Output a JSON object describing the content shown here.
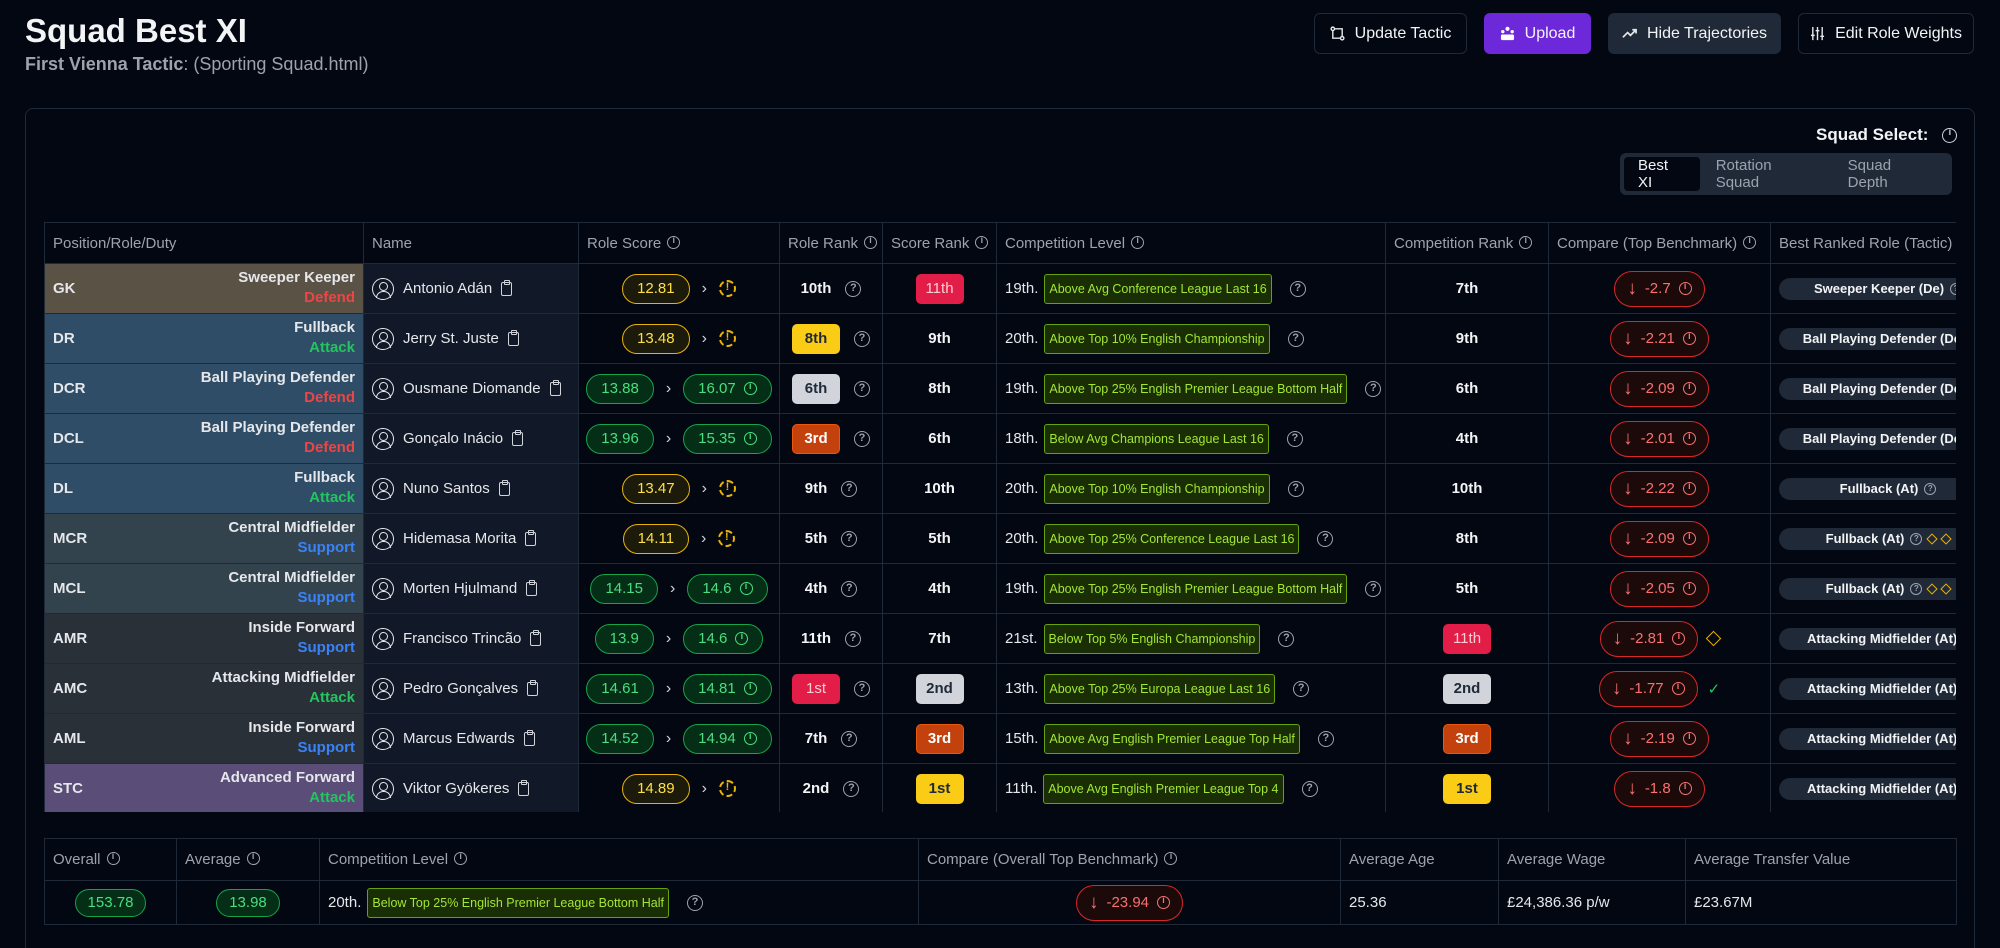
{
  "header": {
    "title": "Squad Best XI",
    "subtitle_label": "First Vienna Tactic",
    "subtitle_file": ": (Sporting Squad.html)"
  },
  "toolbar": {
    "update": "Update Tactic",
    "upload": "Upload",
    "hide": "Hide Trajectories",
    "edit": "Edit Role Weights"
  },
  "squad_select": {
    "label": "Squad Select:",
    "options": [
      "Best XI",
      "Rotation Squad",
      "Squad Depth"
    ],
    "selected": "Best XI"
  },
  "columns": [
    "Position/Role/Duty",
    "Name",
    "Role Score",
    "Role Rank",
    "Score Rank",
    "Competition Level",
    "Competition Rank",
    "Compare (Top Benchmark)",
    "Best Ranked Role (Tactic)"
  ],
  "rows": [
    {
      "pos": "GK",
      "role": "Sweeper Keeper",
      "duty": "Defend",
      "name": "Antonio Adán",
      "score": "12.81",
      "target": "",
      "role_rank": "10th",
      "score_rank": "11th",
      "comp_place": "19th.",
      "comp_level": "Above Avg Conference League Last 16",
      "comp_rank": "7th",
      "bench": "-2.7",
      "best_role": "Sweeper Keeper (De)"
    },
    {
      "pos": "DR",
      "role": "Fullback",
      "duty": "Attack",
      "name": "Jerry St. Juste",
      "score": "13.48",
      "target": "",
      "role_rank": "8th",
      "score_rank": "9th",
      "comp_place": "20th.",
      "comp_level": "Above Top 10% English Championship",
      "comp_rank": "9th",
      "bench": "-2.21",
      "best_role": "Ball Playing Defender (De)"
    },
    {
      "pos": "DCR",
      "role": "Ball Playing Defender",
      "duty": "Defend",
      "name": "Ousmane Diomande",
      "score": "13.88",
      "target": "16.07",
      "role_rank": "6th",
      "score_rank": "8th",
      "comp_place": "19th.",
      "comp_level": "Above Top 25% English Premier League Bottom Half",
      "comp_rank": "6th",
      "bench": "-2.09",
      "best_role": "Ball Playing Defender (De)"
    },
    {
      "pos": "DCL",
      "role": "Ball Playing Defender",
      "duty": "Defend",
      "name": "Gonçalo Inácio",
      "score": "13.96",
      "target": "15.35",
      "role_rank": "3rd",
      "score_rank": "6th",
      "comp_place": "18th.",
      "comp_level": "Below Avg Champions League Last 16",
      "comp_rank": "4th",
      "bench": "-2.01",
      "best_role": "Ball Playing Defender (De)"
    },
    {
      "pos": "DL",
      "role": "Fullback",
      "duty": "Attack",
      "name": "Nuno Santos",
      "score": "13.47",
      "target": "",
      "role_rank": "9th",
      "score_rank": "10th",
      "comp_place": "20th.",
      "comp_level": "Above Top 10% English Championship",
      "comp_rank": "10th",
      "bench": "-2.22",
      "best_role": "Fullback (At)"
    },
    {
      "pos": "MCR",
      "role": "Central Midfielder",
      "duty": "Support",
      "name": "Hidemasa Morita",
      "score": "14.11",
      "target": "",
      "role_rank": "5th",
      "score_rank": "5th",
      "comp_place": "20th.",
      "comp_level": "Above Top 25% Conference League Last 16",
      "comp_rank": "8th",
      "bench": "-2.09",
      "best_role": "Fullback (At)"
    },
    {
      "pos": "MCL",
      "role": "Central Midfielder",
      "duty": "Support",
      "name": "Morten Hjulmand",
      "score": "14.15",
      "target": "14.6",
      "role_rank": "4th",
      "score_rank": "4th",
      "comp_place": "19th.",
      "comp_level": "Above Top 25% English Premier League Bottom Half",
      "comp_rank": "5th",
      "bench": "-2.05",
      "best_role": "Fullback (At)"
    },
    {
      "pos": "AMR",
      "role": "Inside Forward",
      "duty": "Support",
      "name": "Francisco Trincão",
      "score": "13.9",
      "target": "14.6",
      "role_rank": "11th",
      "score_rank": "7th",
      "comp_place": "21st.",
      "comp_level": "Below Top 5% English Championship",
      "comp_rank": "11th",
      "bench": "-2.81",
      "best_role": "Attacking Midfielder (At)"
    },
    {
      "pos": "AMC",
      "role": "Attacking Midfielder",
      "duty": "Attack",
      "name": "Pedro Gonçalves",
      "score": "14.61",
      "target": "14.81",
      "role_rank": "1st",
      "score_rank": "2nd",
      "comp_place": "13th.",
      "comp_level": "Above Top 25% Europa League Last 16",
      "comp_rank": "2nd",
      "bench": "-1.77",
      "best_role": "Attacking Midfielder (At)"
    },
    {
      "pos": "AML",
      "role": "Inside Forward",
      "duty": "Support",
      "name": "Marcus Edwards",
      "score": "14.52",
      "target": "14.94",
      "role_rank": "7th",
      "score_rank": "3rd",
      "comp_place": "15th.",
      "comp_level": "Above Avg English Premier League Top Half",
      "comp_rank": "3rd",
      "bench": "-2.19",
      "best_role": "Attacking Midfielder (At)"
    },
    {
      "pos": "STC",
      "role": "Advanced Forward",
      "duty": "Attack",
      "name": "Viktor Gyökeres",
      "score": "14.89",
      "target": "",
      "role_rank": "2nd",
      "score_rank": "1st",
      "comp_place": "11th.",
      "comp_level": "Above Avg English Premier League Top 4",
      "comp_rank": "1st",
      "bench": "-1.8",
      "best_role": "Attacking Midfielder (At)"
    }
  ],
  "summary": {
    "headers": [
      "Overall",
      "Average",
      "Competition Level",
      "Compare (Overall Top Benchmark)",
      "Average Age",
      "Average Wage",
      "Average Transfer Value"
    ],
    "overall": "153.78",
    "average": "13.98",
    "comp_place": "20th.",
    "comp_level": "Below Top 25% English Premier League Bottom Half",
    "bench": "-23.94",
    "age": "25.36",
    "wage": "£24,386.36 p/w",
    "value": "£23.67M"
  },
  "colors": {
    "accent": "#6d28d9",
    "positive": "#22c55e",
    "negative": "#ef4444",
    "support": "#3b82f6"
  }
}
